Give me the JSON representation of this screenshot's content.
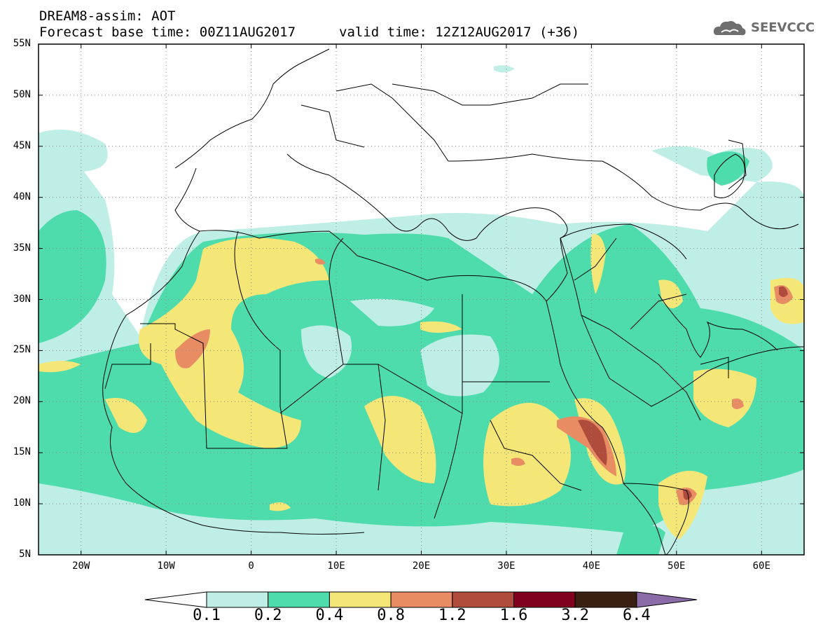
{
  "header": {
    "title_line1": "DREAM8-assim: AOT",
    "title_line2": "Forecast base time: 00Z11AUG2017",
    "valid_time": "valid time: 12Z12AUG2017 (+36)",
    "logo_text": "SEEVCCC",
    "logo_icon": "cloud-icon"
  },
  "map": {
    "lon_range": [
      -25,
      65
    ],
    "lat_range": [
      5,
      55
    ],
    "lat_labels": [
      "55N",
      "50N",
      "45N",
      "40N",
      "35N",
      "30N",
      "25N",
      "20N",
      "15N",
      "10N",
      "5N"
    ],
    "lon_labels": [
      "20W",
      "10W",
      "0",
      "10E",
      "20E",
      "30E",
      "40E",
      "50E",
      "60E"
    ],
    "grid": "dotted"
  },
  "colorbar": {
    "labels": [
      "0.1",
      "0.2",
      "0.4",
      "0.8",
      "1.2",
      "1.6",
      "3.2",
      "6.4"
    ],
    "colors": [
      "#ffffff",
      "#bfeee6",
      "#4fdcac",
      "#f5e678",
      "#e88c64",
      "#b04c3c",
      "#800020",
      "#3a2010",
      "#8c6ca8"
    ]
  }
}
